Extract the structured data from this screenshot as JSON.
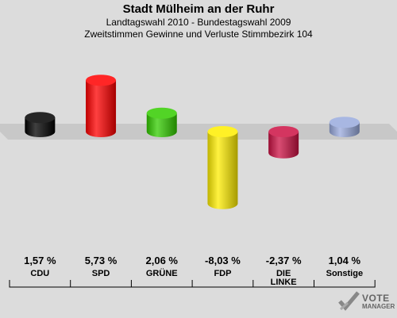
{
  "header": {
    "title": "Stadt Mülheim an der Ruhr",
    "subtitle1": "Landtagswahl 2010 - Bundestagswahl 2009",
    "subtitle2": "Zweitstimmen Gewinne und Verluste Stimmbezirk 104"
  },
  "chart_data": {
    "type": "bar",
    "categories": [
      "CDU",
      "SPD",
      "GRÜNE",
      "FDP",
      "DIE\nLINKE",
      "Sonstige"
    ],
    "values": [
      1.57,
      5.73,
      2.06,
      -8.03,
      -2.37,
      1.04
    ],
    "value_labels": [
      "1,57 %",
      "5,73 %",
      "2,06 %",
      "-8,03 %",
      "-2,37 %",
      "1,04 %"
    ],
    "colors": [
      "#000000",
      "#ff0000",
      "#33cc00",
      "#ffee00",
      "#cc1144",
      "#99aadd"
    ],
    "ylim": [
      -9,
      7
    ]
  },
  "logo": {
    "line1": "VOTE",
    "line2": "MANAGER"
  }
}
